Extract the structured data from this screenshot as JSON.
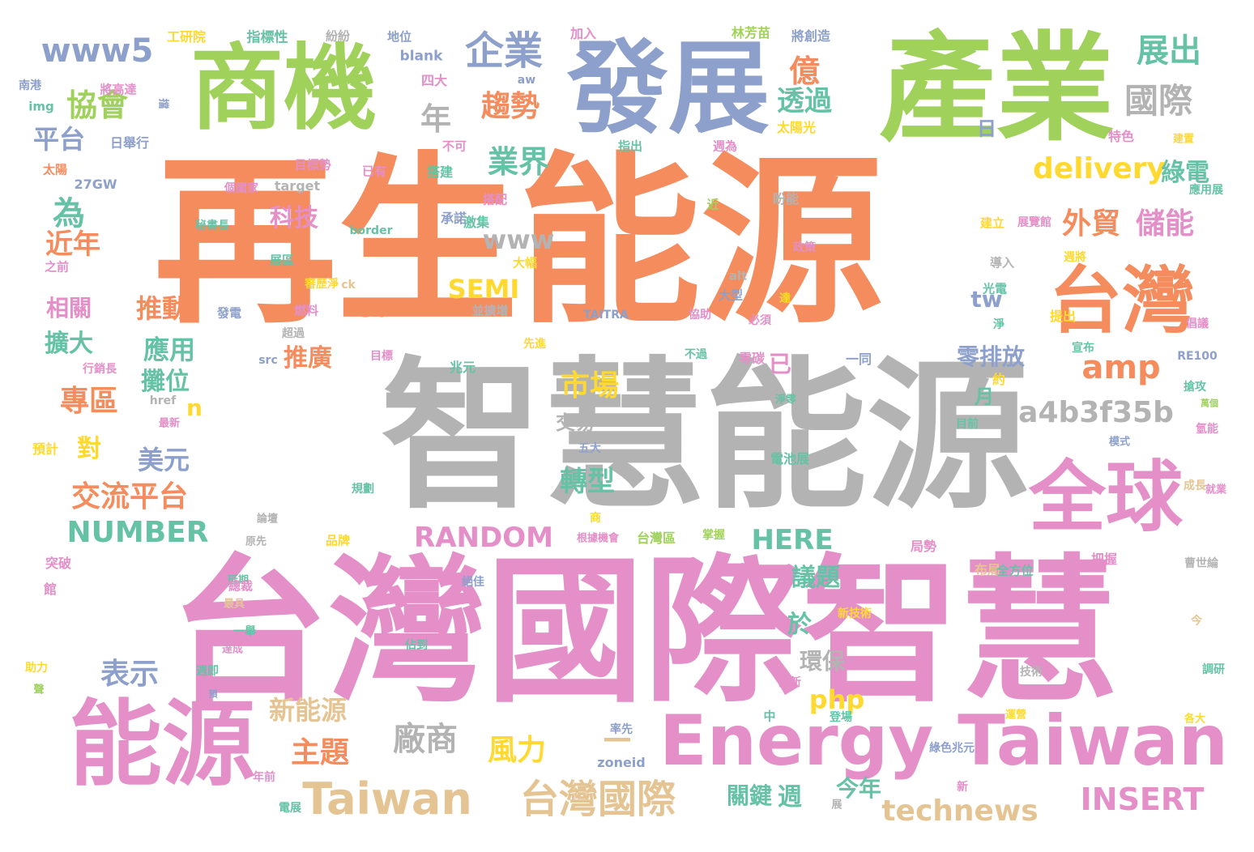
{
  "palette": {
    "orange": "#f48c5e",
    "pink": "#e48fc8",
    "green": "#9fd15b",
    "blue": "#8da0cb",
    "gray": "#b3b3b3",
    "tan": "#e5c494",
    "yellow": "#ffd92f",
    "teal": "#66c2a5"
  },
  "words": [
    {
      "text": "再生能源",
      "color": "orange"
    },
    {
      "text": "智慧能源",
      "color": "gray"
    },
    {
      "text": "台灣國際智慧",
      "color": "pink"
    },
    {
      "text": "產業",
      "color": "green"
    },
    {
      "text": "發展",
      "color": "blue"
    },
    {
      "text": "商機",
      "color": "green"
    },
    {
      "text": "能源",
      "color": "pink"
    },
    {
      "text": "全球",
      "color": "pink"
    },
    {
      "text": "台灣",
      "color": "orange"
    },
    {
      "text": "Energy Taiwan",
      "color": "pink"
    },
    {
      "text": "企業",
      "color": "blue"
    },
    {
      "text": "國際",
      "color": "gray"
    },
    {
      "text": "展出",
      "color": "teal"
    },
    {
      "text": "www5",
      "color": "blue"
    },
    {
      "text": "協會",
      "color": "green"
    },
    {
      "text": "平台",
      "color": "blue"
    },
    {
      "text": "年",
      "color": "gray"
    },
    {
      "text": "趨勢",
      "color": "orange"
    },
    {
      "text": "億",
      "color": "orange"
    },
    {
      "text": "透過",
      "color": "teal"
    },
    {
      "text": "日",
      "color": "blue"
    },
    {
      "text": "業界",
      "color": "teal"
    },
    {
      "text": "delivery",
      "color": "yellow"
    },
    {
      "text": "綠電",
      "color": "teal"
    },
    {
      "text": "為",
      "color": "teal"
    },
    {
      "text": "外貿",
      "color": "orange"
    },
    {
      "text": "儲能",
      "color": "pink"
    },
    {
      "text": "www",
      "color": "gray"
    },
    {
      "text": "近年",
      "color": "orange"
    },
    {
      "text": "科技",
      "color": "pink"
    },
    {
      "text": "SEMI",
      "color": "yellow"
    },
    {
      "text": "cb",
      "color": "orange"
    },
    {
      "text": "tw",
      "color": "blue"
    },
    {
      "text": "相關",
      "color": "pink"
    },
    {
      "text": "推動",
      "color": "orange"
    },
    {
      "text": "擴大",
      "color": "teal"
    },
    {
      "text": "應用",
      "color": "teal"
    },
    {
      "text": "推廣",
      "color": "orange"
    },
    {
      "text": "已",
      "color": "pink"
    },
    {
      "text": "零排放",
      "color": "blue"
    },
    {
      "text": "amp",
      "color": "orange"
    },
    {
      "text": "專區",
      "color": "orange"
    },
    {
      "text": "攤位",
      "color": "teal"
    },
    {
      "text": "市場",
      "color": "yellow"
    },
    {
      "text": "月",
      "color": "teal"
    },
    {
      "text": "a4b3f35b",
      "color": "gray"
    },
    {
      "text": "對",
      "color": "yellow"
    },
    {
      "text": "美元",
      "color": "blue"
    },
    {
      "text": "n",
      "color": "yellow"
    },
    {
      "text": "交易",
      "color": "gray"
    },
    {
      "text": "轉型",
      "color": "teal"
    },
    {
      "text": "交流平台",
      "color": "orange"
    },
    {
      "text": "NUMBER",
      "color": "teal"
    },
    {
      "text": "RANDOM",
      "color": "pink"
    },
    {
      "text": "HERE",
      "color": "teal"
    },
    {
      "text": "議題",
      "color": "teal"
    },
    {
      "text": "於",
      "color": "teal"
    },
    {
      "text": "環保",
      "color": "gray"
    },
    {
      "text": "表示",
      "color": "blue"
    },
    {
      "text": "php",
      "color": "yellow"
    },
    {
      "text": "新能源",
      "color": "tan"
    },
    {
      "text": "主題",
      "color": "orange"
    },
    {
      "text": "廠商",
      "color": "gray"
    },
    {
      "text": "風力",
      "color": "yellow"
    },
    {
      "text": "—",
      "color": "tan"
    },
    {
      "text": "Taiwan",
      "color": "tan"
    },
    {
      "text": "台灣國際",
      "color": "tan"
    },
    {
      "text": "關鍵",
      "color": "teal"
    },
    {
      "text": "週",
      "color": "teal"
    },
    {
      "text": "今年",
      "color": "teal"
    },
    {
      "text": "technews",
      "color": "tan"
    },
    {
      "text": "INSERT",
      "color": "pink"
    },
    {
      "text": "工研院",
      "color": "yellow"
    },
    {
      "text": "指標性",
      "color": "teal"
    },
    {
      "text": "紛紛",
      "color": "gray"
    },
    {
      "text": "地位",
      "color": "blue"
    },
    {
      "text": "加入",
      "color": "pink"
    },
    {
      "text": "林芳苗",
      "color": "green"
    },
    {
      "text": "將創造",
      "color": "blue"
    },
    {
      "text": "南港",
      "color": "blue"
    },
    {
      "text": "將高達",
      "color": "pink"
    },
    {
      "text": "blank",
      "color": "blue"
    },
    {
      "text": "四大",
      "color": "pink"
    },
    {
      "text": "aw",
      "color": "blue"
    },
    {
      "text": "img",
      "color": "teal"
    },
    {
      "text": "擋",
      "color": "blue"
    },
    {
      "text": "日舉行",
      "color": "blue"
    },
    {
      "text": "不可",
      "color": "pink"
    },
    {
      "text": "太陽光",
      "color": "yellow"
    },
    {
      "text": "指出",
      "color": "teal"
    },
    {
      "text": "週為",
      "color": "pink"
    },
    {
      "text": "特色",
      "color": "pink"
    },
    {
      "text": "建置",
      "color": "yellow"
    },
    {
      "text": "太陽",
      "color": "orange"
    },
    {
      "text": "目標勢",
      "color": "pink"
    },
    {
      "text": "已有",
      "color": "pink"
    },
    {
      "text": "搭建",
      "color": "teal"
    },
    {
      "text": "27GW",
      "color": "blue"
    },
    {
      "text": "個國家",
      "color": "pink"
    },
    {
      "text": "target",
      "color": "gray"
    },
    {
      "text": "搭配",
      "color": "pink"
    },
    {
      "text": "近",
      "color": "green"
    },
    {
      "text": "盼能",
      "color": "gray"
    },
    {
      "text": "應用展",
      "color": "teal"
    },
    {
      "text": "秘書長",
      "color": "teal"
    },
    {
      "text": "承諾",
      "color": "blue"
    },
    {
      "text": "激集",
      "color": "teal"
    },
    {
      "text": "border",
      "color": "teal"
    },
    {
      "text": "建立",
      "color": "yellow"
    },
    {
      "text": "展覽館",
      "color": "pink"
    },
    {
      "text": "之前",
      "color": "pink"
    },
    {
      "text": "展區",
      "color": "teal"
    },
    {
      "text": "大幅",
      "color": "yellow"
    },
    {
      "text": "政策",
      "color": "pink"
    },
    {
      "text": "導入",
      "color": "gray"
    },
    {
      "text": "週將",
      "color": "yellow"
    },
    {
      "text": "審歷淨",
      "color": "yellow"
    },
    {
      "text": "ck",
      "color": "tan"
    },
    {
      "text": "大型",
      "color": "blue"
    },
    {
      "text": "alt",
      "color": "gray"
    },
    {
      "text": "光電",
      "color": "teal"
    },
    {
      "text": "發電",
      "color": "blue"
    },
    {
      "text": "燃料",
      "color": "pink"
    },
    {
      "text": "並擴增",
      "color": "gray"
    },
    {
      "text": "TAITRA",
      "color": "blue"
    },
    {
      "text": "達",
      "color": "yellow"
    },
    {
      "text": "提出",
      "color": "yellow"
    },
    {
      "text": "超過",
      "color": "gray"
    },
    {
      "text": "協助",
      "color": "pink"
    },
    {
      "text": "必須",
      "color": "pink"
    },
    {
      "text": "淨",
      "color": "teal"
    },
    {
      "text": "倡議",
      "color": "pink"
    },
    {
      "text": "src",
      "color": "blue"
    },
    {
      "text": "目標",
      "color": "pink"
    },
    {
      "text": "先進",
      "color": "yellow"
    },
    {
      "text": "兆元",
      "color": "teal"
    },
    {
      "text": "不過",
      "color": "teal"
    },
    {
      "text": "零碳",
      "color": "pink"
    },
    {
      "text": "一同",
      "color": "blue"
    },
    {
      "text": "宣布",
      "color": "teal"
    },
    {
      "text": "RE100",
      "color": "blue"
    },
    {
      "text": "行銷長",
      "color": "pink"
    },
    {
      "text": "約",
      "color": "yellow"
    },
    {
      "text": "搶攻",
      "color": "teal"
    },
    {
      "text": "href",
      "color": "gray"
    },
    {
      "text": "最新",
      "color": "pink"
    },
    {
      "text": "淨零",
      "color": "teal"
    },
    {
      "text": "目前",
      "color": "teal"
    },
    {
      "text": "萬個",
      "color": "green"
    },
    {
      "text": "模式",
      "color": "blue"
    },
    {
      "text": "氫能",
      "color": "pink"
    },
    {
      "text": "預計",
      "color": "yellow"
    },
    {
      "text": "五大",
      "color": "blue"
    },
    {
      "text": "電池展",
      "color": "teal"
    },
    {
      "text": "規劃",
      "color": "teal"
    },
    {
      "text": "成長",
      "color": "tan"
    },
    {
      "text": "就業",
      "color": "pink"
    },
    {
      "text": "商",
      "color": "yellow"
    },
    {
      "text": "論壇",
      "color": "gray"
    },
    {
      "text": "原先",
      "color": "gray"
    },
    {
      "text": "品牌",
      "color": "yellow"
    },
    {
      "text": "根據機會",
      "color": "pink"
    },
    {
      "text": "台灣區",
      "color": "green"
    },
    {
      "text": "掌握",
      "color": "green"
    },
    {
      "text": "局勢",
      "color": "pink"
    },
    {
      "text": "布局",
      "color": "tan"
    },
    {
      "text": "全方位",
      "color": "teal"
    },
    {
      "text": "把握",
      "color": "pink"
    },
    {
      "text": "突破",
      "color": "pink"
    },
    {
      "text": "延期",
      "color": "teal"
    },
    {
      "text": "總裁",
      "color": "pink"
    },
    {
      "text": "館",
      "color": "pink"
    },
    {
      "text": "最具",
      "color": "tan"
    },
    {
      "text": "曹世綸",
      "color": "gray"
    },
    {
      "text": "絕佳",
      "color": "blue"
    },
    {
      "text": "新技術",
      "color": "yellow"
    },
    {
      "text": "一舉",
      "color": "teal"
    },
    {
      "text": "佔到",
      "color": "teal"
    },
    {
      "text": "今",
      "color": "tan"
    },
    {
      "text": "達成",
      "color": "pink"
    },
    {
      "text": "助力",
      "color": "yellow"
    },
    {
      "text": "週即",
      "color": "teal"
    },
    {
      "text": "技術",
      "color": "gray"
    },
    {
      "text": "調研",
      "color": "teal"
    },
    {
      "text": "聲",
      "color": "green"
    },
    {
      "text": "預",
      "color": "blue"
    },
    {
      "text": "全新",
      "color": "pink"
    },
    {
      "text": "中",
      "color": "teal"
    },
    {
      "text": "登場",
      "color": "teal"
    },
    {
      "text": "運營",
      "color": "yellow"
    },
    {
      "text": "各大",
      "color": "yellow"
    },
    {
      "text": "率先",
      "color": "blue"
    },
    {
      "text": "zoneid",
      "color": "blue"
    },
    {
      "text": "綠色兆元",
      "color": "blue"
    },
    {
      "text": "年前",
      "color": "pink"
    },
    {
      "text": "新",
      "color": "pink"
    },
    {
      "text": "電展",
      "color": "teal"
    },
    {
      "text": "展",
      "color": "gray"
    },
    {
      "text": "台幣",
      "color": "gray"
    }
  ]
}
